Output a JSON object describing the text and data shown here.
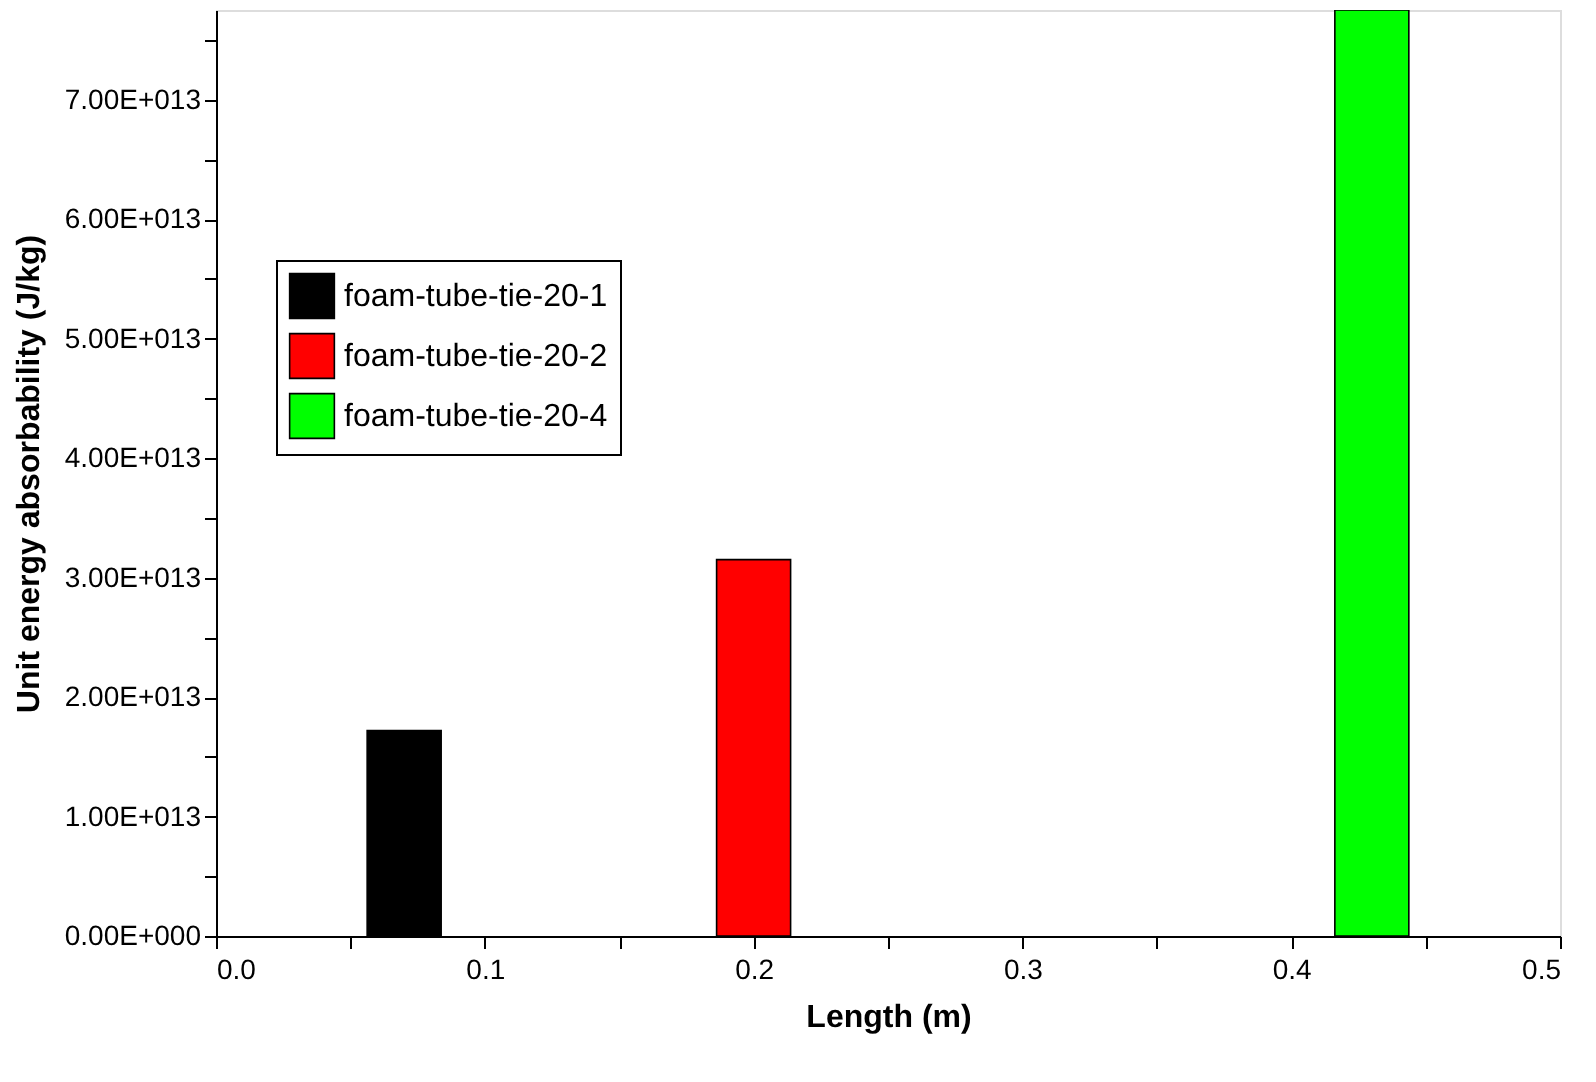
{
  "chart_data": {
    "type": "bar",
    "xlabel": "Length (m)",
    "ylabel": "Unit energy absorbability (J/kg)",
    "series": [
      {
        "name": "foam-tube-tie-20-1",
        "color": "#000000",
        "x": [
          0.07
        ],
        "values": [
          17200000000000.0
        ]
      },
      {
        "name": "foam-tube-tie-20-2",
        "color": "#ff0000",
        "x": [
          0.2
        ],
        "values": [
          31500000000000.0
        ]
      },
      {
        "name": "foam-tube-tie-20-4",
        "color": "#00ff00",
        "x": [
          0.43
        ],
        "values": [
          77500000000000.0
        ]
      }
    ],
    "xlim": [
      0,
      0.5
    ],
    "xticks": [
      {
        "value": 0,
        "label": "0.0"
      },
      {
        "value": 0.05,
        "label": null
      },
      {
        "value": 0.1,
        "label": "0.1"
      },
      {
        "value": 0.15,
        "label": null
      },
      {
        "value": 0.2,
        "label": "0.2"
      },
      {
        "value": 0.25,
        "label": null
      },
      {
        "value": 0.3,
        "label": "0.3"
      },
      {
        "value": 0.35,
        "label": null
      },
      {
        "value": 0.4,
        "label": "0.4"
      },
      {
        "value": 0.45,
        "label": null
      },
      {
        "value": 0.5,
        "label": "0.5"
      }
    ],
    "ylim": [
      0,
      77500000000000.0
    ],
    "yticks": [
      {
        "value": 0,
        "label": "0.00E+000"
      },
      {
        "value": 5000000000000.0,
        "label": null
      },
      {
        "value": 10000000000000.0,
        "label": "1.00E+013"
      },
      {
        "value": 15000000000000.0,
        "label": null
      },
      {
        "value": 20000000000000.0,
        "label": "2.00E+013"
      },
      {
        "value": 25000000000000.0,
        "label": null
      },
      {
        "value": 30000000000000.0,
        "label": "3.00E+013"
      },
      {
        "value": 35000000000000.0,
        "label": null
      },
      {
        "value": 40000000000000.0,
        "label": "4.00E+013"
      },
      {
        "value": 45000000000000.0,
        "label": null
      },
      {
        "value": 50000000000000.0,
        "label": "5.00E+013"
      },
      {
        "value": 55000000000000.0,
        "label": null
      },
      {
        "value": 60000000000000.0,
        "label": "6.00E+013"
      },
      {
        "value": 65000000000000.0,
        "label": null
      },
      {
        "value": 70000000000000.0,
        "label": "7.00E+013"
      },
      {
        "value": 75000000000000.0,
        "label": null
      }
    ],
    "legend": "top left",
    "grid": false
  }
}
